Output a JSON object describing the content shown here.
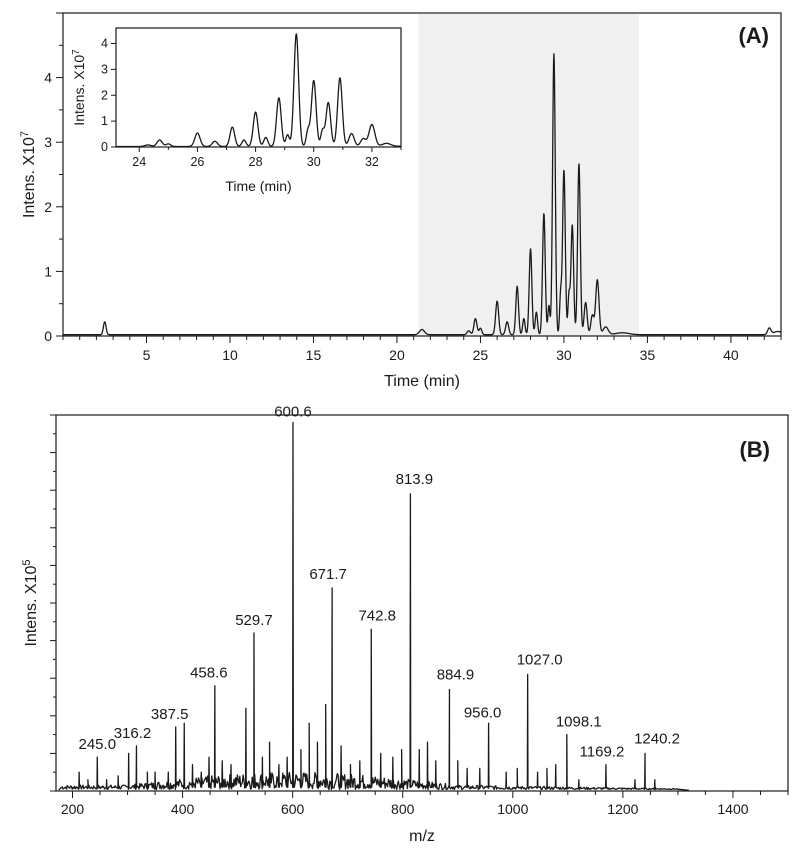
{
  "chart_data": [
    {
      "panel_label": "(A)",
      "type": "line",
      "xlabel": "Time (min)",
      "ylabel_main": "Intens. X10",
      "ylabel_exp": "7",
      "xlim": [
        0,
        43
      ],
      "ylim": [
        0,
        5
      ],
      "x_ticks": [
        5,
        10,
        15,
        20,
        25,
        30,
        35,
        40
      ],
      "y_ticks": [
        0,
        1,
        2,
        3,
        4
      ],
      "highlight_range": [
        21.3,
        34.5
      ],
      "highlight_color": "#f0f0f0",
      "baseline": 0.02,
      "peaks": [
        {
          "x": 2.5,
          "y": 0.2,
          "w": 0.08
        },
        {
          "x": 21.5,
          "y": 0.08,
          "w": 0.15
        },
        {
          "x": 24.3,
          "y": 0.06,
          "w": 0.1
        },
        {
          "x": 24.7,
          "y": 0.25,
          "w": 0.09
        },
        {
          "x": 25.0,
          "y": 0.1,
          "w": 0.08
        },
        {
          "x": 26.0,
          "y": 0.52,
          "w": 0.09
        },
        {
          "x": 26.6,
          "y": 0.2,
          "w": 0.09
        },
        {
          "x": 27.2,
          "y": 0.75,
          "w": 0.08
        },
        {
          "x": 27.6,
          "y": 0.25,
          "w": 0.07
        },
        {
          "x": 28.0,
          "y": 1.33,
          "w": 0.08
        },
        {
          "x": 28.35,
          "y": 0.35,
          "w": 0.07
        },
        {
          "x": 28.8,
          "y": 1.88,
          "w": 0.08
        },
        {
          "x": 29.1,
          "y": 0.45,
          "w": 0.06
        },
        {
          "x": 29.4,
          "y": 4.35,
          "w": 0.08
        },
        {
          "x": 29.8,
          "y": 0.6,
          "w": 0.06
        },
        {
          "x": 30.0,
          "y": 2.55,
          "w": 0.08
        },
        {
          "x": 30.3,
          "y": 0.6,
          "w": 0.06
        },
        {
          "x": 30.5,
          "y": 1.7,
          "w": 0.08
        },
        {
          "x": 30.9,
          "y": 2.65,
          "w": 0.08
        },
        {
          "x": 31.3,
          "y": 0.5,
          "w": 0.09
        },
        {
          "x": 31.7,
          "y": 0.3,
          "w": 0.09
        },
        {
          "x": 32.0,
          "y": 0.85,
          "w": 0.1
        },
        {
          "x": 32.5,
          "y": 0.12,
          "w": 0.15
        },
        {
          "x": 33.5,
          "y": 0.03,
          "w": 0.4
        },
        {
          "x": 42.3,
          "y": 0.1,
          "w": 0.1
        },
        {
          "x": 42.8,
          "y": 0.05,
          "w": 0.25
        }
      ],
      "inset": {
        "xlabel": "Time (min)",
        "ylabel_main": "Intens. X10",
        "ylabel_exp": "7",
        "xlim": [
          23.2,
          33.0
        ],
        "ylim": [
          0,
          4.6
        ],
        "x_ticks": [
          24,
          26,
          28,
          30,
          32
        ],
        "y_ticks": [
          0,
          1,
          2,
          3,
          4
        ]
      }
    },
    {
      "panel_label": "(B)",
      "type": "bar",
      "xlabel": "m/z",
      "ylabel_main": "Intens. X10",
      "ylabel_exp": "5",
      "xlim": [
        170,
        1500
      ],
      "ylim": [
        0,
        100
      ],
      "x_ticks": [
        200,
        400,
        600,
        800,
        1000,
        1200,
        1400
      ],
      "labeled_peaks": [
        {
          "mz": 245.0,
          "label": "245.0",
          "intensity": 9
        },
        {
          "mz": 316.2,
          "label": "316.2",
          "intensity": 12
        },
        {
          "mz": 387.5,
          "label": "387.5",
          "intensity": 17
        },
        {
          "mz": 458.6,
          "label": "458.6",
          "intensity": 28
        },
        {
          "mz": 529.7,
          "label": "529.7",
          "intensity": 42
        },
        {
          "mz": 600.6,
          "label": "600.6",
          "intensity": 98
        },
        {
          "mz": 671.7,
          "label": "671.7",
          "intensity": 54
        },
        {
          "mz": 742.8,
          "label": "742.8",
          "intensity": 43
        },
        {
          "mz": 813.9,
          "label": "813.9",
          "intensity": 79
        },
        {
          "mz": 884.9,
          "label": "884.9",
          "intensity": 27
        },
        {
          "mz": 956.0,
          "label": "956.0",
          "intensity": 18
        },
        {
          "mz": 1027.0,
          "label": "1027.0",
          "intensity": 31
        },
        {
          "mz": 1098.1,
          "label": "1098.1",
          "intensity": 15
        },
        {
          "mz": 1169.2,
          "label": "1169.2",
          "intensity": 7
        },
        {
          "mz": 1240.2,
          "label": "1240.2",
          "intensity": 10
        }
      ],
      "minor_peaks": [
        {
          "mz": 212,
          "intensity": 5
        },
        {
          "mz": 228,
          "intensity": 3
        },
        {
          "mz": 262,
          "intensity": 3
        },
        {
          "mz": 283,
          "intensity": 4
        },
        {
          "mz": 302,
          "intensity": 10
        },
        {
          "mz": 336,
          "intensity": 5
        },
        {
          "mz": 350,
          "intensity": 5
        },
        {
          "mz": 374,
          "intensity": 5
        },
        {
          "mz": 403,
          "intensity": 18
        },
        {
          "mz": 418,
          "intensity": 7
        },
        {
          "mz": 434,
          "intensity": 5
        },
        {
          "mz": 448,
          "intensity": 9
        },
        {
          "mz": 472,
          "intensity": 8
        },
        {
          "mz": 488,
          "intensity": 7
        },
        {
          "mz": 515,
          "intensity": 22
        },
        {
          "mz": 545,
          "intensity": 9
        },
        {
          "mz": 558,
          "intensity": 13
        },
        {
          "mz": 575,
          "intensity": 7
        },
        {
          "mz": 590,
          "intensity": 9
        },
        {
          "mz": 615,
          "intensity": 11
        },
        {
          "mz": 630,
          "intensity": 18
        },
        {
          "mz": 645,
          "intensity": 13
        },
        {
          "mz": 660,
          "intensity": 23
        },
        {
          "mz": 688,
          "intensity": 12
        },
        {
          "mz": 705,
          "intensity": 7
        },
        {
          "mz": 722,
          "intensity": 8
        },
        {
          "mz": 760,
          "intensity": 10
        },
        {
          "mz": 782,
          "intensity": 9
        },
        {
          "mz": 798,
          "intensity": 11
        },
        {
          "mz": 830,
          "intensity": 11
        },
        {
          "mz": 845,
          "intensity": 13
        },
        {
          "mz": 860,
          "intensity": 8
        },
        {
          "mz": 900,
          "intensity": 8
        },
        {
          "mz": 917,
          "intensity": 6
        },
        {
          "mz": 940,
          "intensity": 6
        },
        {
          "mz": 988,
          "intensity": 5
        },
        {
          "mz": 1008,
          "intensity": 6
        },
        {
          "mz": 1045,
          "intensity": 5
        },
        {
          "mz": 1062,
          "intensity": 6
        },
        {
          "mz": 1078,
          "intensity": 7
        },
        {
          "mz": 1120,
          "intensity": 3
        },
        {
          "mz": 1222,
          "intensity": 3
        },
        {
          "mz": 1258,
          "intensity": 3
        }
      ]
    }
  ]
}
